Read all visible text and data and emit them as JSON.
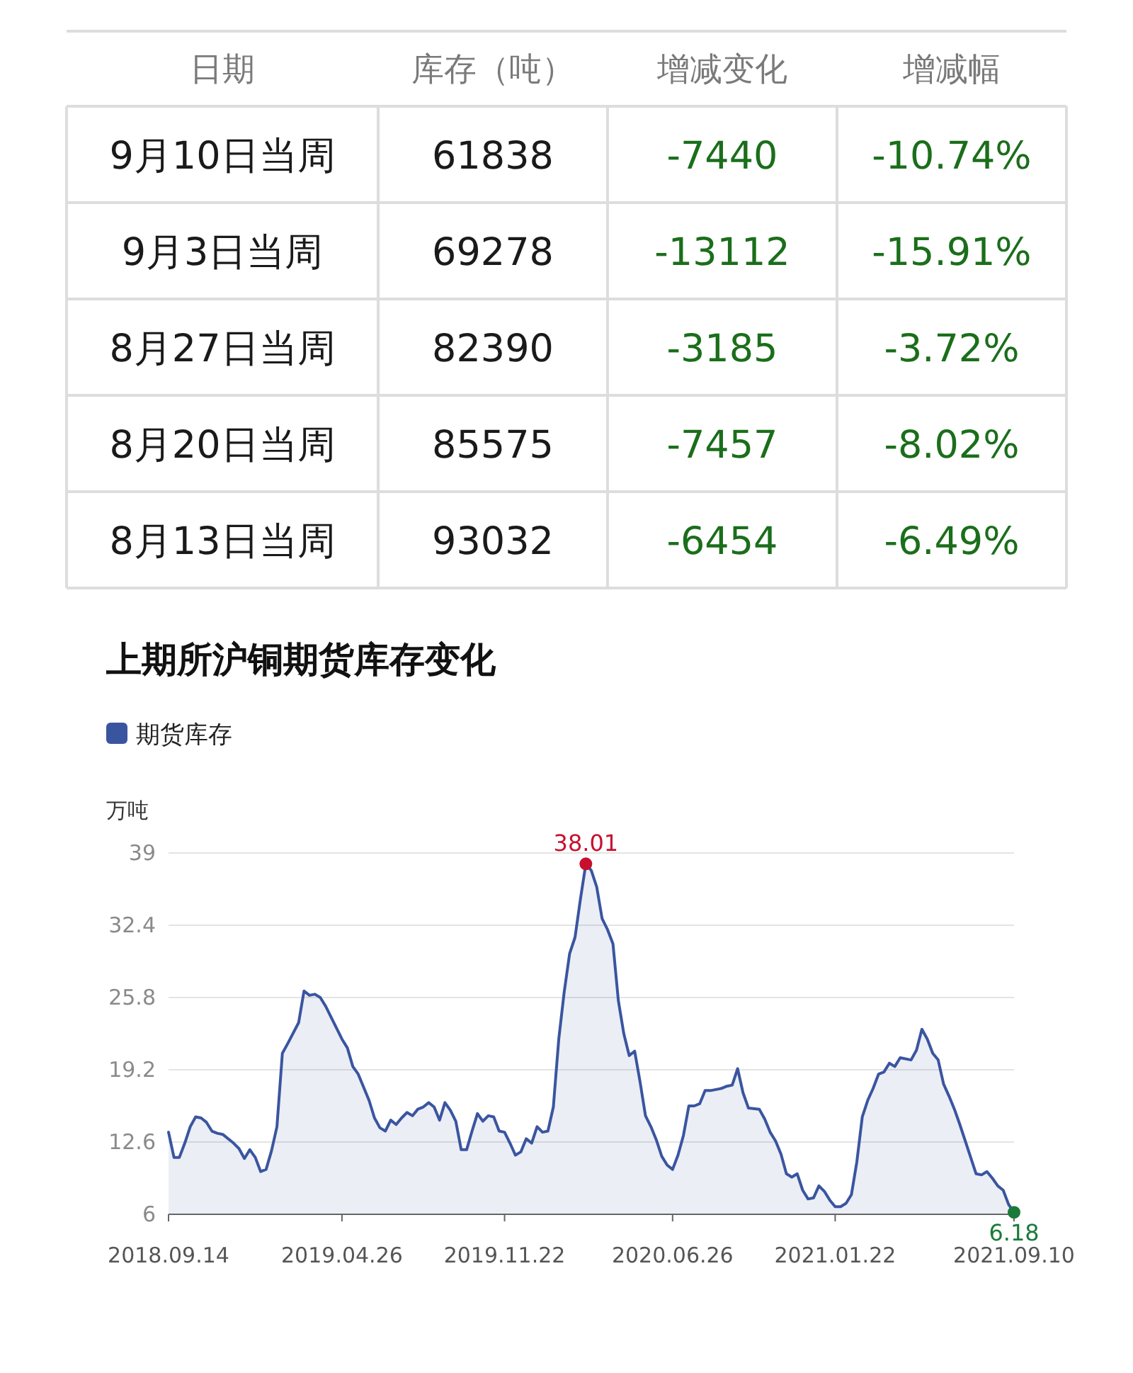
{
  "chart_data": [
    {
      "type": "other",
      "ylabel": "日期",
      "categories": [
        "库存（吨）",
        "增减变化",
        "增减幅"
      ],
      "y_categories": [
        "9月10日当周",
        "9月3日当周",
        "8月27日当周",
        "8月20日当周",
        "8月13日当周"
      ],
      "cell_labels": [
        [
          "61838",
          "-7440",
          "-10.74%"
        ],
        [
          "69278",
          "-13112",
          "-15.91%"
        ],
        [
          "82390",
          "-3185",
          "-3.72%"
        ],
        [
          "85575",
          "-7457",
          "-8.02%"
        ],
        [
          "93032",
          "-6454",
          "-6.49%"
        ]
      ],
      "colors": [
        "#1a1a1a",
        "#1b6e1b",
        "#1b6e1b"
      ]
    },
    {
      "type": "area",
      "title": "上期所沪铜期货库存变化",
      "ylabel": "万吨",
      "x": [
        "2018-09-14",
        "2018-09-21",
        "2018-09-28",
        "2018-10-05",
        "2018-10-12",
        "2018-10-19",
        "2018-10-26",
        "2018-11-02",
        "2018-11-09",
        "2018-11-16",
        "2018-11-23",
        "2018-12-07",
        "2018-12-14",
        "2018-12-21",
        "2018-12-28",
        "2019-01-04",
        "2019-01-11",
        "2019-01-18",
        "2019-01-25",
        "2019-02-01",
        "2019-02-08",
        "2019-02-15",
        "2019-03-01",
        "2019-03-08",
        "2019-03-15",
        "2019-03-22",
        "2019-03-29",
        "2019-04-05",
        "2019-04-12",
        "2019-04-26",
        "2019-05-03",
        "2019-05-10",
        "2019-05-17",
        "2019-05-31",
        "2019-06-07",
        "2019-06-14",
        "2019-06-21",
        "2019-06-28",
        "2019-07-05",
        "2019-07-12",
        "2019-07-19",
        "2019-07-26",
        "2019-08-02",
        "2019-08-09",
        "2019-08-16",
        "2019-08-23",
        "2019-08-30",
        "2019-09-06",
        "2019-09-13",
        "2019-09-20",
        "2019-09-27",
        "2019-10-04",
        "2019-10-11",
        "2019-10-18",
        "2019-10-25",
        "2019-11-01",
        "2019-11-08",
        "2019-11-15",
        "2019-11-22",
        "2019-11-29",
        "2019-12-06",
        "2019-12-13",
        "2019-12-20",
        "2019-12-27",
        "2020-01-03",
        "2020-01-10",
        "2020-01-17",
        "2020-01-24",
        "2020-01-31",
        "2020-02-07",
        "2020-02-14",
        "2020-02-21",
        "2020-02-28",
        "2020-03-06",
        "2020-03-13",
        "2020-03-20",
        "2020-03-27",
        "2020-04-03",
        "2020-04-10",
        "2020-04-17",
        "2020-04-24",
        "2020-05-01",
        "2020-05-08",
        "2020-05-15",
        "2020-05-22",
        "2020-05-29",
        "2020-06-05",
        "2020-06-12",
        "2020-06-19",
        "2020-06-26",
        "2020-07-03",
        "2020-07-10",
        "2020-07-17",
        "2020-07-24",
        "2020-07-31",
        "2020-08-07",
        "2020-08-14",
        "2020-08-28",
        "2020-09-04",
        "2020-09-11",
        "2020-09-18",
        "2020-09-25",
        "2020-10-02",
        "2020-10-16",
        "2020-10-23",
        "2020-10-30",
        "2020-11-06",
        "2020-11-13",
        "2020-11-20",
        "2020-11-27",
        "2020-12-04",
        "2020-12-11",
        "2020-12-18",
        "2020-12-25",
        "2021-01-01",
        "2021-01-08",
        "2021-01-15",
        "2021-01-22",
        "2021-01-29",
        "2021-02-05",
        "2021-02-12",
        "2021-02-19",
        "2021-02-26",
        "2021-03-05",
        "2021-03-12",
        "2021-03-19",
        "2021-03-26",
        "2021-04-02",
        "2021-04-09",
        "2021-04-16",
        "2021-04-30",
        "2021-05-07",
        "2021-05-14",
        "2021-05-21",
        "2021-05-28",
        "2021-06-04",
        "2021-06-11",
        "2021-06-18",
        "2021-06-25",
        "2021-07-02",
        "2021-07-16",
        "2021-07-23",
        "2021-07-30",
        "2021-08-06",
        "2021-08-13",
        "2021-08-20",
        "2021-08-27",
        "2021-09-03",
        "2021-09-10"
      ],
      "series": [
        {
          "name": "期货库存",
          "color": "#3a55a0",
          "values": [
            13.5,
            11.2,
            11.2,
            12.5,
            14.0,
            14.9,
            14.8,
            14.4,
            13.6,
            13.4,
            13.3,
            12.5,
            12.0,
            11.1,
            11.9,
            11.2,
            9.9,
            10.1,
            11.8,
            14.0,
            20.7,
            21.6,
            23.5,
            26.4,
            26.0,
            26.1,
            25.8,
            25.0,
            24.0,
            22.0,
            21.2,
            19.5,
            18.8,
            16.4,
            14.8,
            13.9,
            13.6,
            14.6,
            14.2,
            14.8,
            15.3,
            15.0,
            15.6,
            15.8,
            16.2,
            15.8,
            14.6,
            16.2,
            15.5,
            14.5,
            11.9,
            11.9,
            13.6,
            15.2,
            14.5,
            15.0,
            14.9,
            13.6,
            13.5,
            12.5,
            11.4,
            11.7,
            12.9,
            12.5,
            14.0,
            13.5,
            13.6,
            15.8,
            22.0,
            26.3,
            29.8,
            31.3,
            34.8,
            38.01,
            37.4,
            35.9,
            33.0,
            32.0,
            30.7,
            25.5,
            22.5,
            20.5,
            20.9,
            18.1,
            15.0,
            14.0,
            12.8,
            11.3,
            10.5,
            10.1,
            11.4,
            13.2,
            15.9,
            15.9,
            16.1,
            17.3,
            17.3,
            17.5,
            17.7,
            17.8,
            19.3,
            17.1,
            15.7,
            15.6,
            14.7,
            13.5,
            12.7,
            11.5,
            9.7,
            9.4,
            9.7,
            8.2,
            7.4,
            7.5,
            8.6,
            8.1,
            7.3,
            6.7,
            6.7,
            7.0,
            7.8,
            10.8,
            14.9,
            16.4,
            17.5,
            18.8,
            19.0,
            19.8,
            19.5,
            20.3,
            20.1,
            21.0,
            22.9,
            22.0,
            20.7,
            20.1,
            17.9,
            16.8,
            15.6,
            14.2,
            11.2,
            9.7,
            9.6,
            9.9,
            9.3,
            8.6,
            8.2,
            6.9,
            6.18
          ],
          "value_labels": [
            null,
            null,
            null,
            null,
            null,
            null,
            null,
            null,
            null,
            null,
            null,
            null,
            null,
            null,
            null,
            null,
            null,
            null,
            null,
            null,
            null,
            null,
            null,
            null,
            null,
            null,
            null,
            null,
            null,
            null,
            null,
            null,
            null,
            null,
            null,
            null,
            null,
            null,
            null,
            null,
            null,
            null,
            null,
            null,
            null,
            null,
            null,
            null,
            null,
            null,
            null,
            null,
            null,
            null,
            null,
            null,
            null,
            null,
            null,
            null,
            null,
            null,
            null,
            null,
            null,
            null,
            null,
            null,
            null,
            null,
            null,
            null,
            null,
            "38.01",
            null,
            null,
            null,
            null,
            null,
            null,
            null,
            null,
            null,
            null,
            null,
            null,
            null,
            null,
            null,
            null,
            null,
            null,
            null,
            null,
            null,
            null,
            null,
            null,
            null,
            null,
            null,
            null,
            null,
            null,
            null,
            null,
            null,
            null,
            null,
            null,
            null,
            null,
            null,
            null,
            null,
            null,
            null,
            null,
            null,
            null,
            null,
            null,
            null,
            null,
            null,
            null,
            null,
            null,
            null,
            null,
            null,
            null,
            null,
            null,
            null,
            null,
            null,
            null,
            null,
            null,
            null,
            null,
            null,
            null,
            null,
            null,
            null,
            null,
            "6.18"
          ]
        }
      ],
      "xlim": [
        "2018-09-14",
        "2021-09-10"
      ],
      "xticks": [
        {
          "value": "2018-09-14",
          "label": "2018.09.14"
        },
        {
          "value": "2019-04-26",
          "label": "2019.04.26"
        },
        {
          "value": "2019-11-22",
          "label": "2019.11.22"
        },
        {
          "value": "2020-06-26",
          "label": "2020.06.26"
        },
        {
          "value": "2021-01-22",
          "label": "2021.01.22"
        },
        {
          "value": "2021-09-10",
          "label": "2021.09.10"
        }
      ],
      "ylim": [
        6,
        39
      ],
      "yticks": [
        6,
        12.6,
        19.2,
        25.8,
        32.4,
        39
      ],
      "grid": "y",
      "legend": "top left"
    }
  ]
}
